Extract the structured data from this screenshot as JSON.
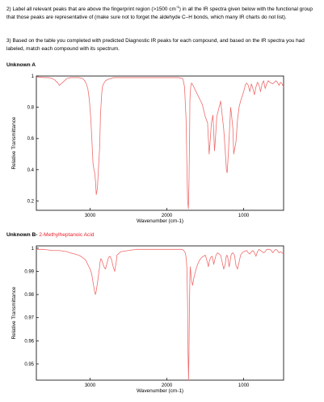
{
  "instructions": {
    "q2_before": "2) Label all relevant peaks that are above the fingerprint region (>1500 cm",
    "q2_sup": "-1",
    "q2_after": ") in all the IR spectra given below with the functional group that those peaks are representative of (make sure not to forget the aldehyde C–H bonds, which many IR charts do not list).",
    "q3": "3) Based on the table you completed with predicted Diagnostic IR peaks for each compound, and based on the IR spectra you had labeled, match each compound with its spectrum."
  },
  "unknown_a": {
    "heading": "Unknown A"
  },
  "unknown_b": {
    "heading": "Unknown B-",
    "name": " 2-Methylheptanoic Acid"
  },
  "colors": {
    "spectrum_line": "#f06b6b",
    "annotation_red": "#e8212b"
  },
  "chart_data": [
    {
      "type": "line",
      "title": "",
      "xlabel": "Wavenumber (cm-1)",
      "ylabel": "Relative Transmittance",
      "xlim": [
        3700,
        480
      ],
      "x_reversed": true,
      "ylim": [
        0.14,
        1.0
      ],
      "x_ticks": [
        3000,
        2000,
        1000
      ],
      "y_ticks": [
        0.2,
        0.4,
        0.6,
        0.8,
        1
      ],
      "y_tick_labels": [
        "0.2",
        "0.4",
        "0.6",
        "0.8",
        "1"
      ],
      "grid": false,
      "series": [
        {
          "x": [
            3700,
            3600,
            3540,
            3500,
            3460,
            3420,
            3400,
            3300,
            3250,
            3150,
            3100,
            3070,
            3050,
            3030,
            3010,
            2990,
            2975,
            2962,
            2950,
            2940,
            2930,
            2920,
            2905,
            2890,
            2875,
            2865,
            2850,
            2840,
            2825,
            2800,
            2760,
            2720,
            2700,
            2650,
            2600,
            2500,
            2400,
            2300,
            2200,
            2100,
            2000,
            1950,
            1900,
            1850,
            1800,
            1790,
            1770,
            1750,
            1740,
            1730,
            1720,
            1712,
            1705,
            1700,
            1690,
            1680,
            1670,
            1660,
            1650,
            1620,
            1600,
            1580,
            1560,
            1540,
            1520,
            1500,
            1485,
            1470,
            1460,
            1450,
            1440,
            1420,
            1400,
            1390,
            1380,
            1370,
            1350,
            1300,
            1260,
            1240,
            1225,
            1215,
            1200,
            1190,
            1180,
            1170,
            1160,
            1140,
            1130,
            1100,
            1080,
            1060,
            1040,
            1020,
            1000,
            990,
            980,
            970,
            960,
            940,
            920,
            900,
            880,
            860,
            840,
            820,
            800,
            780,
            760,
            740,
            720,
            700,
            680,
            660,
            620,
            580,
            560,
            540,
            520,
            500,
            480
          ],
          "y": [
            0.995,
            0.99,
            0.99,
            0.985,
            0.975,
            0.955,
            0.94,
            0.985,
            0.99,
            0.99,
            0.985,
            0.97,
            0.95,
            0.92,
            0.85,
            0.72,
            0.57,
            0.44,
            0.4,
            0.38,
            0.33,
            0.24,
            0.28,
            0.42,
            0.55,
            0.75,
            0.88,
            0.93,
            0.95,
            0.97,
            0.98,
            0.985,
            0.99,
            0.99,
            0.99,
            0.99,
            0.99,
            0.99,
            0.99,
            0.99,
            0.99,
            0.99,
            0.99,
            0.99,
            0.985,
            0.98,
            0.93,
            0.72,
            0.45,
            0.2,
            0.15,
            0.32,
            0.6,
            0.85,
            0.93,
            0.955,
            0.95,
            0.94,
            0.93,
            0.9,
            0.88,
            0.86,
            0.84,
            0.82,
            0.78,
            0.74,
            0.72,
            0.7,
            0.6,
            0.5,
            0.56,
            0.7,
            0.75,
            0.64,
            0.52,
            0.58,
            0.74,
            0.84,
            0.66,
            0.52,
            0.4,
            0.38,
            0.5,
            0.6,
            0.7,
            0.8,
            0.76,
            0.66,
            0.5,
            0.58,
            0.72,
            0.8,
            0.84,
            0.87,
            0.9,
            0.92,
            0.94,
            0.95,
            0.955,
            0.94,
            0.9,
            0.95,
            0.92,
            0.88,
            0.93,
            0.96,
            0.94,
            0.9,
            0.95,
            0.97,
            0.92,
            0.95,
            0.97,
            0.96,
            0.95,
            0.97,
            0.96,
            0.94,
            0.96,
            0.95,
            0.93
          ]
        }
      ]
    },
    {
      "type": "line",
      "title": "",
      "xlabel": "Wavenumber (cm-1)",
      "ylabel": "Relative Transmittance",
      "xlim": [
        3700,
        480
      ],
      "x_reversed": true,
      "ylim": [
        0.943,
        1.001
      ],
      "x_ticks": [
        3000,
        2000,
        1000
      ],
      "y_ticks": [
        0.95,
        0.96,
        0.97,
        0.98,
        0.99,
        1
      ],
      "y_tick_labels": [
        "0.95",
        "0.96",
        "0.97",
        "0.98",
        "0.99",
        "1"
      ],
      "grid": false,
      "series": [
        {
          "x": [
            3700,
            3600,
            3500,
            3400,
            3300,
            3260,
            3200,
            3150,
            3120,
            3100,
            3060,
            3030,
            3000,
            2980,
            2970,
            2960,
            2950,
            2940,
            2930,
            2920,
            2900,
            2880,
            2870,
            2860,
            2850,
            2840,
            2820,
            2800,
            2780,
            2760,
            2740,
            2720,
            2700,
            2680,
            2660,
            2650,
            2600,
            2500,
            2400,
            2300,
            2200,
            2100,
            2000,
            1900,
            1850,
            1800,
            1780,
            1760,
            1750,
            1740,
            1730,
            1725,
            1718,
            1712,
            1706,
            1700,
            1695,
            1690,
            1680,
            1665,
            1650,
            1620,
            1600,
            1580,
            1560,
            1540,
            1500,
            1490,
            1470,
            1460,
            1450,
            1430,
            1410,
            1400,
            1390,
            1380,
            1360,
            1340,
            1300,
            1280,
            1260,
            1240,
            1230,
            1220,
            1210,
            1200,
            1190,
            1180,
            1170,
            1160,
            1140,
            1120,
            1100,
            1080,
            1060,
            1040,
            1020,
            1000,
            960,
            940,
            920,
            900,
            880,
            860,
            840,
            820,
            800,
            780,
            760,
            740,
            720,
            700,
            660,
            640,
            620,
            600,
            580,
            560,
            540,
            520,
            500,
            480
          ],
          "y": [
            0.9995,
            0.9995,
            0.999,
            0.999,
            0.9985,
            0.998,
            0.9975,
            0.997,
            0.9965,
            0.996,
            0.995,
            0.993,
            0.991,
            0.989,
            0.987,
            0.985,
            0.983,
            0.981,
            0.98,
            0.9815,
            0.986,
            0.991,
            0.994,
            0.9955,
            0.995,
            0.994,
            0.992,
            0.991,
            0.9935,
            0.996,
            0.9965,
            0.995,
            0.992,
            0.99,
            0.994,
            0.997,
            0.9985,
            0.999,
            0.9995,
            0.9995,
            0.9995,
            0.9995,
            0.9995,
            0.9995,
            0.9995,
            0.9995,
            0.999,
            0.998,
            0.996,
            0.992,
            0.975,
            0.955,
            0.943,
            0.955,
            0.975,
            0.988,
            0.992,
            0.99,
            0.986,
            0.984,
            0.987,
            0.991,
            0.993,
            0.9945,
            0.9955,
            0.9962,
            0.997,
            0.996,
            0.9935,
            0.992,
            0.994,
            0.996,
            0.9965,
            0.995,
            0.993,
            0.9945,
            0.997,
            0.998,
            0.997,
            0.994,
            0.991,
            0.993,
            0.996,
            0.997,
            0.9965,
            0.9945,
            0.992,
            0.9935,
            0.996,
            0.9975,
            0.998,
            0.997,
            0.9925,
            0.991,
            0.994,
            0.997,
            0.998,
            0.9985,
            0.999,
            0.998,
            0.9975,
            0.9985,
            0.999,
            0.998,
            0.9965,
            0.9985,
            0.9995,
            0.999,
            0.9985,
            0.998,
            0.9985,
            0.9995,
            0.9995,
            0.999,
            0.998,
            0.999,
            0.9995,
            0.999,
            0.998,
            0.9985,
            0.998,
            0.9975
          ]
        }
      ]
    }
  ]
}
